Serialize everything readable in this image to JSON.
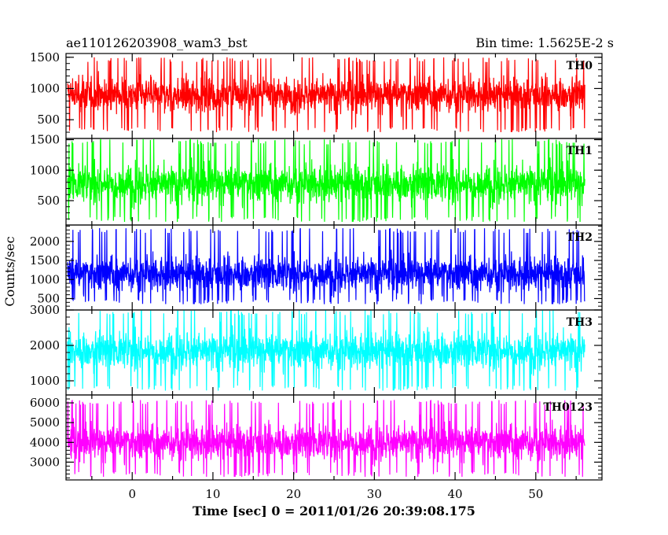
{
  "header": {
    "title": "ae110126203908_wam3_bst",
    "bin_time": "Bin time: 1.5625E-2 s"
  },
  "chart_data": {
    "type": "line",
    "title": "ae110126203908_wam3_bst",
    "subtitle": "Bin time: 1.5625E-2 s",
    "xlabel": "Time [sec] 0 = 2011/01/26 20:39:08.175",
    "ylabel": "Counts/sec",
    "xlim": [
      -8.2,
      58.2
    ],
    "x_ticks": [
      "0",
      "10",
      "20",
      "30",
      "40",
      "50"
    ],
    "x_tick_values": [
      0,
      10,
      20,
      30,
      40,
      50
    ],
    "data_x_range": [
      -8,
      56
    ],
    "grid": false,
    "legend": "none",
    "panels": [
      {
        "name": "TH0",
        "color": "#ff0000",
        "ylim": [
          200,
          1560
        ],
        "y_ticks": [
          "500",
          "1000",
          "1500"
        ],
        "y_tick_values": [
          500,
          1000,
          1500
        ],
        "mean": 900,
        "low": 300,
        "high": 1500
      },
      {
        "name": "TH1",
        "color": "#00ff00",
        "ylim": [
          100,
          1520
        ],
        "y_ticks": [
          "500",
          "1000",
          "1500"
        ],
        "y_tick_values": [
          500,
          1000,
          1500
        ],
        "mean": 780,
        "low": 150,
        "high": 1510
      },
      {
        "name": "TH2",
        "color": "#0000ff",
        "ylim": [
          200,
          2430
        ],
        "y_ticks": [
          "500",
          "1000",
          "1500",
          "2000"
        ],
        "y_tick_values": [
          500,
          1000,
          1500,
          2000
        ],
        "mean": 1150,
        "low": 350,
        "high": 2350
      },
      {
        "name": "TH3",
        "color": "#00ffff",
        "ylim": [
          600,
          3000
        ],
        "y_ticks": [
          "1000",
          "2000",
          "3000"
        ],
        "y_tick_values": [
          1000,
          2000,
          3000
        ],
        "mean": 1850,
        "low": 720,
        "high": 3000
      },
      {
        "name": "TH0123",
        "color": "#ff00ff",
        "ylim": [
          2100,
          6400
        ],
        "y_ticks": [
          "3000",
          "4000",
          "5000",
          "6000"
        ],
        "y_tick_values": [
          3000,
          4000,
          5000,
          6000
        ],
        "mean": 4000,
        "low": 2250,
        "high": 6150
      }
    ]
  }
}
